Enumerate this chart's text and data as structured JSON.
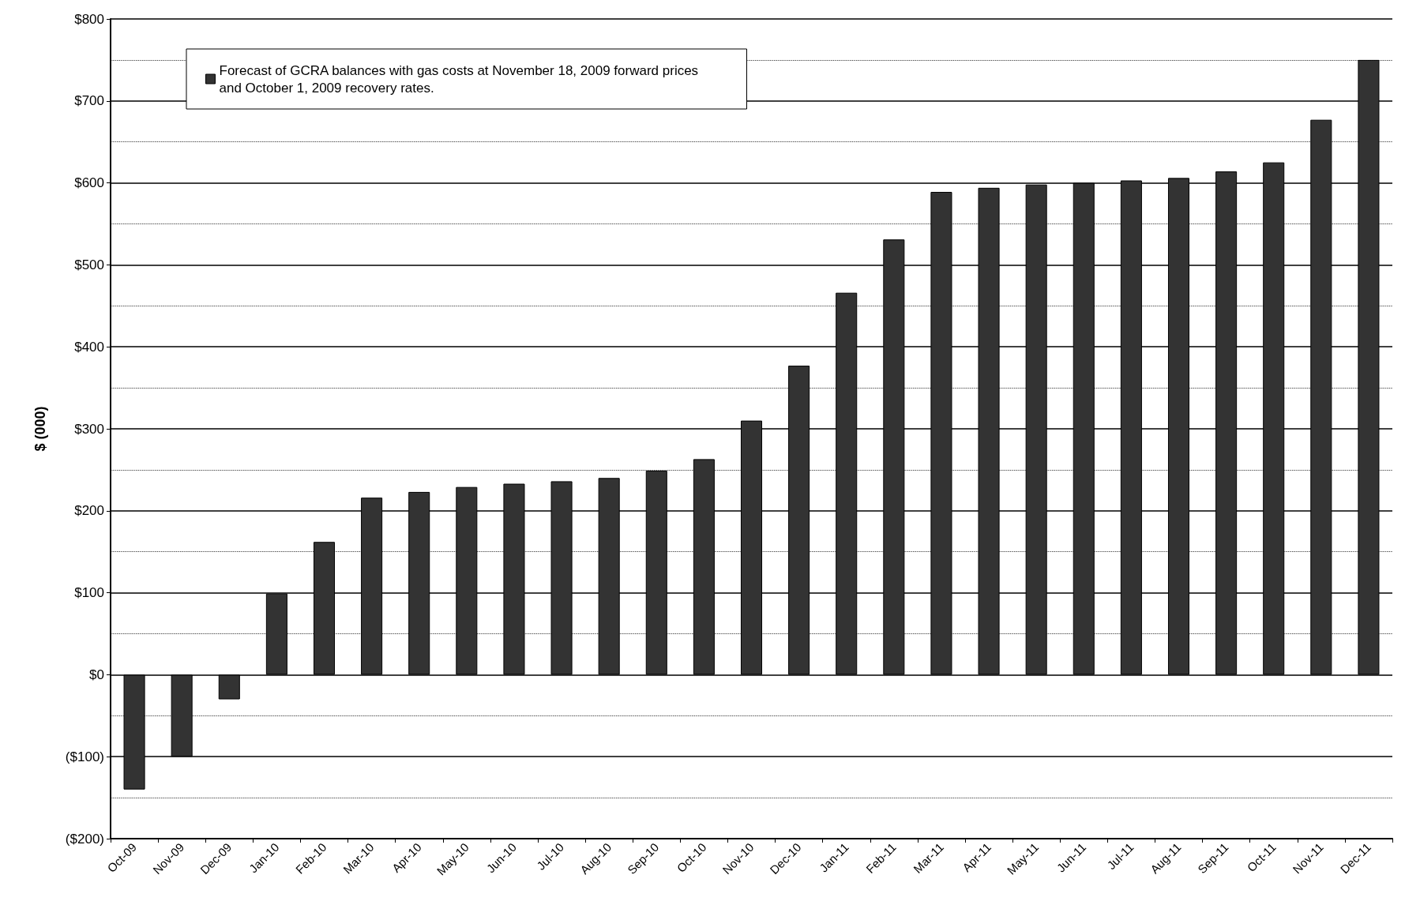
{
  "chart_data": {
    "type": "bar",
    "ylabel": "$ (000)",
    "categories": [
      "Oct-09",
      "Nov-09",
      "Dec-09",
      "Jan-10",
      "Feb-10",
      "Mar-10",
      "Apr-10",
      "May-10",
      "Jun-10",
      "Jul-10",
      "Aug-10",
      "Sep-10",
      "Oct-10",
      "Nov-10",
      "Dec-10",
      "Jan-11",
      "Feb-11",
      "Mar-11",
      "Apr-11",
      "May-11",
      "Jun-11",
      "Jul-11",
      "Aug-11",
      "Sep-11",
      "Oct-11",
      "Nov-11",
      "Dec-11"
    ],
    "series": [
      {
        "name": "Forecast of GCRA balances with gas costs at November 18, 2009 forward prices and October 1, 2009 recovery rates.",
        "color": "#333333",
        "values": [
          -140,
          -100,
          -30,
          99,
          162,
          216,
          223,
          229,
          233,
          236,
          240,
          249,
          263,
          310,
          377,
          466,
          531,
          589,
          594,
          598,
          600,
          603,
          606,
          614,
          625,
          677,
          750
        ]
      }
    ],
    "ylim": [
      -200,
      800
    ],
    "yticks": [
      {
        "value": -200,
        "label": "($200)"
      },
      {
        "value": -150,
        "label": null
      },
      {
        "value": -100,
        "label": "($100)"
      },
      {
        "value": -50,
        "label": null
      },
      {
        "value": 0,
        "label": "$0"
      },
      {
        "value": 50,
        "label": null
      },
      {
        "value": 100,
        "label": "$100"
      },
      {
        "value": 150,
        "label": null
      },
      {
        "value": 200,
        "label": "$200"
      },
      {
        "value": 250,
        "label": null
      },
      {
        "value": 300,
        "label": "$300"
      },
      {
        "value": 350,
        "label": null
      },
      {
        "value": 400,
        "label": "$400"
      },
      {
        "value": 450,
        "label": null
      },
      {
        "value": 500,
        "label": "$500"
      },
      {
        "value": 550,
        "label": null
      },
      {
        "value": 600,
        "label": "$600"
      },
      {
        "value": 650,
        "label": null
      },
      {
        "value": 700,
        "label": "$700"
      },
      {
        "value": 750,
        "label": null
      },
      {
        "value": 800,
        "label": "$800"
      }
    ],
    "grid": "y",
    "legend": "top left"
  }
}
